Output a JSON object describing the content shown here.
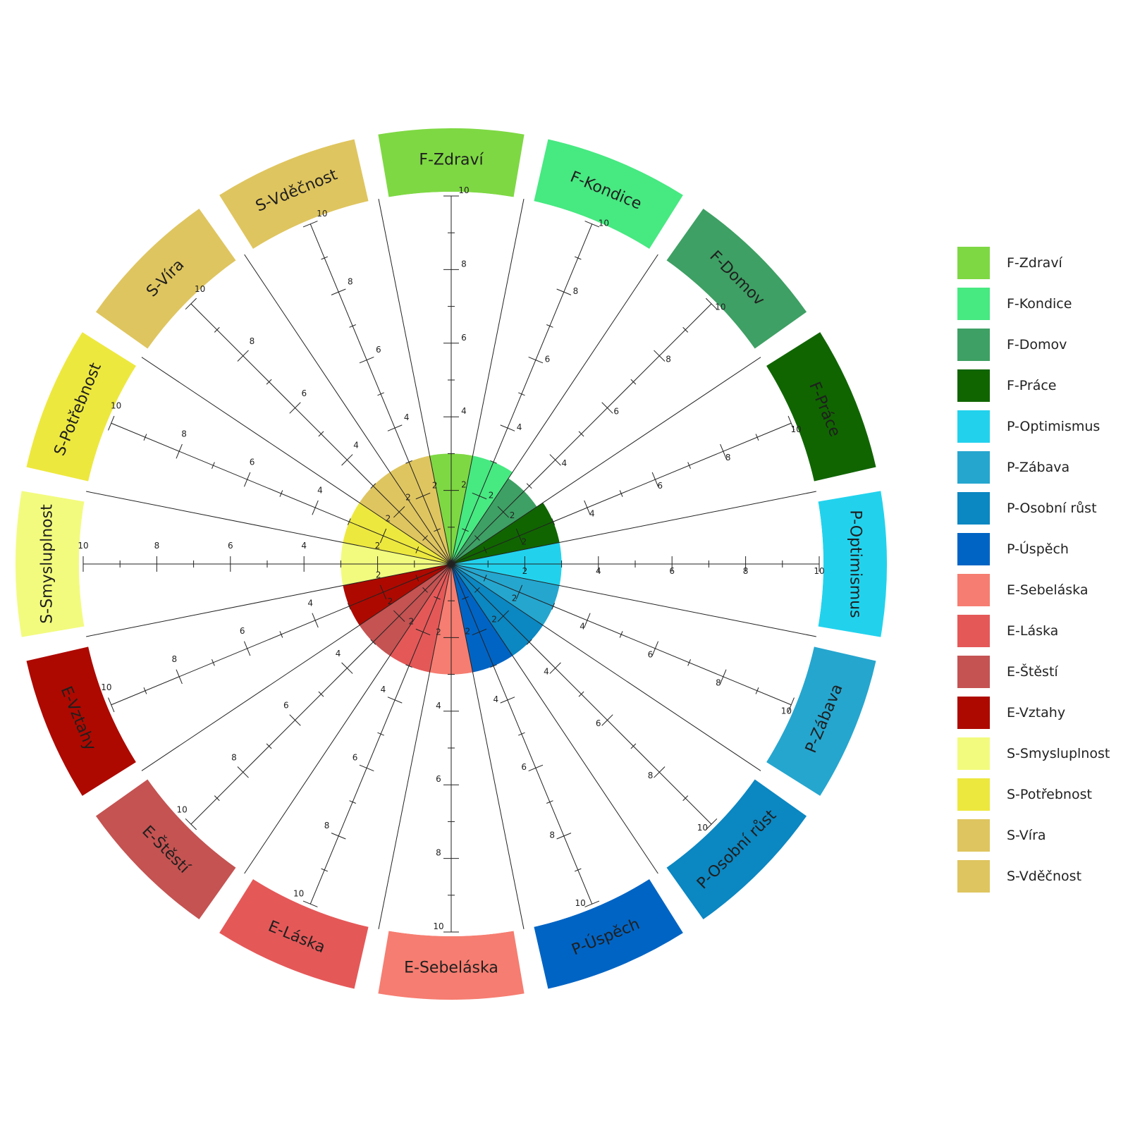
{
  "chart_data": {
    "type": "polar-area",
    "scale": {
      "min": 0,
      "max": 10,
      "major_ticks": [
        2,
        4,
        6,
        8,
        10
      ],
      "minor_step": 1
    },
    "categories": [
      {
        "label": "F-Zdraví",
        "value": 3,
        "color": "#7ed843"
      },
      {
        "label": "F-Kondice",
        "value": 3,
        "color": "#47e981"
      },
      {
        "label": "F-Domov",
        "value": 2.8,
        "color": "#3ea064"
      },
      {
        "label": "F-Práce",
        "value": 3,
        "color": "#106500"
      },
      {
        "label": "P-Optimismus",
        "value": 3,
        "color": "#22d2ed"
      },
      {
        "label": "P-Zábava",
        "value": 3,
        "color": "#25a6cf"
      },
      {
        "label": "P-Osobní růst",
        "value": 3,
        "color": "#0b87c2"
      },
      {
        "label": "P-Úspěch",
        "value": 3,
        "color": "#0064c4"
      },
      {
        "label": "E-Sebeláska",
        "value": 3,
        "color": "#f67d71"
      },
      {
        "label": "E-Láska",
        "value": 3,
        "color": "#e55858"
      },
      {
        "label": "E-Štěstí",
        "value": 3,
        "color": "#c45352"
      },
      {
        "label": "E-Vztahy",
        "value": 3,
        "color": "#ad0900"
      },
      {
        "label": "S-Smysluplnost",
        "value": 3,
        "color": "#f2fb7e"
      },
      {
        "label": "S-Potřebnost",
        "value": 3,
        "color": "#ede83e"
      },
      {
        "label": "S-Víra",
        "value": 3,
        "color": "#dfc55f"
      },
      {
        "label": "S-Vděčnost",
        "value": 3,
        "color": "#dfc55f"
      }
    ],
    "legend_position": "right"
  }
}
